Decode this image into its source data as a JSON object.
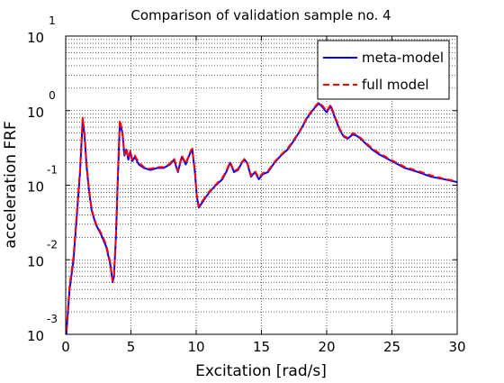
{
  "chart_data": {
    "type": "line",
    "title": "Comparison of validation sample no. 4",
    "xlabel": "Excitation [rad/s]",
    "ylabel": "acceleration FRF",
    "x_ticks": [
      "0",
      "5",
      "10",
      "15",
      "20",
      "25",
      "30"
    ],
    "y_ticks": [
      {
        "base": "10",
        "exp": "-3"
      },
      {
        "base": "10",
        "exp": "-2"
      },
      {
        "base": "10",
        "exp": "-1"
      },
      {
        "base": "10",
        "exp": "0"
      },
      {
        "base": "10",
        "exp": "1"
      }
    ],
    "xlim": [
      0,
      30
    ],
    "ylim": [
      0.001,
      10
    ],
    "yscale": "log",
    "grid": "dotted",
    "legend_placement": "top-right",
    "series": [
      {
        "name": "meta-model",
        "color": "#0000ff",
        "style": "solid",
        "x": [
          0.05,
          0.3,
          0.6,
          0.9,
          1.1,
          1.3,
          1.45,
          1.6,
          1.8,
          2.0,
          2.3,
          2.7,
          3.1,
          3.4,
          3.6,
          3.7,
          3.85,
          4.0,
          4.15,
          4.35,
          4.5,
          4.65,
          4.8,
          4.95,
          5.1,
          5.3,
          5.6,
          6.0,
          6.5,
          7.0,
          7.5,
          8.0,
          8.3,
          8.6,
          8.9,
          9.2,
          9.5,
          9.7,
          9.9,
          10.05,
          10.2,
          10.5,
          11.0,
          11.5,
          12.0,
          12.3,
          12.6,
          12.9,
          13.2,
          13.5,
          13.7,
          13.9,
          14.2,
          14.5,
          14.8,
          15.1,
          15.5,
          16.0,
          16.5,
          17.0,
          17.5,
          18.0,
          18.5,
          19.0,
          19.4,
          19.7,
          20.0,
          20.3,
          20.7,
          21.0,
          21.3,
          21.6,
          22.0,
          22.3,
          22.6,
          23.0,
          23.5,
          24.0,
          25.0,
          26.0,
          27.0,
          28.0,
          29.0,
          30.0
        ],
        "y": [
          0.001,
          0.004,
          0.01,
          0.05,
          0.15,
          0.75,
          0.45,
          0.18,
          0.08,
          0.045,
          0.03,
          0.022,
          0.015,
          0.009,
          0.005,
          0.006,
          0.02,
          0.13,
          0.7,
          0.5,
          0.25,
          0.3,
          0.22,
          0.28,
          0.21,
          0.24,
          0.19,
          0.17,
          0.16,
          0.17,
          0.17,
          0.19,
          0.22,
          0.15,
          0.24,
          0.19,
          0.26,
          0.3,
          0.15,
          0.07,
          0.05,
          0.06,
          0.08,
          0.1,
          0.12,
          0.15,
          0.2,
          0.15,
          0.16,
          0.2,
          0.22,
          0.2,
          0.13,
          0.15,
          0.12,
          0.14,
          0.15,
          0.2,
          0.25,
          0.3,
          0.4,
          0.55,
          0.8,
          1.05,
          1.25,
          1.1,
          0.95,
          1.15,
          0.75,
          0.55,
          0.45,
          0.42,
          0.48,
          0.46,
          0.42,
          0.36,
          0.3,
          0.26,
          0.21,
          0.17,
          0.15,
          0.13,
          0.12,
          0.11
        ]
      },
      {
        "name": "full model",
        "color": "#ff0000",
        "style": "dashed",
        "x": [
          0.05,
          0.3,
          0.6,
          0.9,
          1.1,
          1.3,
          1.45,
          1.6,
          1.8,
          2.0,
          2.3,
          2.7,
          3.1,
          3.4,
          3.6,
          3.7,
          3.85,
          4.0,
          4.15,
          4.35,
          4.5,
          4.65,
          4.8,
          4.95,
          5.1,
          5.3,
          5.6,
          6.0,
          6.5,
          7.0,
          7.5,
          8.0,
          8.3,
          8.6,
          8.9,
          9.2,
          9.5,
          9.7,
          9.9,
          10.05,
          10.2,
          10.5,
          11.0,
          11.5,
          12.0,
          12.3,
          12.6,
          12.9,
          13.2,
          13.5,
          13.7,
          13.9,
          14.2,
          14.5,
          14.8,
          15.1,
          15.5,
          16.0,
          16.5,
          17.0,
          17.5,
          18.0,
          18.5,
          19.0,
          19.4,
          19.7,
          20.0,
          20.3,
          20.7,
          21.0,
          21.3,
          21.6,
          22.0,
          22.3,
          22.6,
          23.0,
          23.5,
          24.0,
          25.0,
          26.0,
          27.0,
          28.0,
          29.0,
          30.0
        ],
        "y": [
          0.0011,
          0.0045,
          0.011,
          0.055,
          0.16,
          0.8,
          0.48,
          0.19,
          0.085,
          0.047,
          0.031,
          0.023,
          0.016,
          0.0095,
          0.0052,
          0.0062,
          0.021,
          0.14,
          0.75,
          0.52,
          0.26,
          0.31,
          0.23,
          0.29,
          0.22,
          0.25,
          0.2,
          0.175,
          0.165,
          0.175,
          0.175,
          0.195,
          0.23,
          0.155,
          0.25,
          0.195,
          0.27,
          0.31,
          0.155,
          0.072,
          0.052,
          0.062,
          0.082,
          0.102,
          0.125,
          0.155,
          0.205,
          0.155,
          0.165,
          0.205,
          0.225,
          0.205,
          0.135,
          0.155,
          0.125,
          0.145,
          0.155,
          0.205,
          0.255,
          0.31,
          0.41,
          0.56,
          0.82,
          1.08,
          1.3,
          1.15,
          0.98,
          1.2,
          0.78,
          0.57,
          0.46,
          0.43,
          0.5,
          0.47,
          0.43,
          0.37,
          0.31,
          0.27,
          0.215,
          0.175,
          0.155,
          0.135,
          0.122,
          0.112
        ]
      }
    ]
  }
}
